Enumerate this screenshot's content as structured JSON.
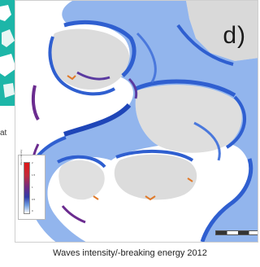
{
  "figure": {
    "panel_letter": "d)",
    "side_text": "at",
    "caption": "Waves intensity/-breaking energy 2012"
  },
  "legend": {
    "title": "Wave intensity",
    "ticks": [
      "2",
      "1.5",
      "1",
      "0.5",
      "0"
    ],
    "colors": [
      "#e01717",
      "#6a2a86",
      "#2f3ba8",
      "#6f9de0",
      "#ffffff"
    ]
  },
  "colors": {
    "coast_blue": "#2f5fd0",
    "light_blue": "#7fa8ea",
    "land_gray": "#d9d9d9",
    "purple": "#6b2c8f",
    "orange": "#e07a2a",
    "teal": "#1db6a8"
  }
}
